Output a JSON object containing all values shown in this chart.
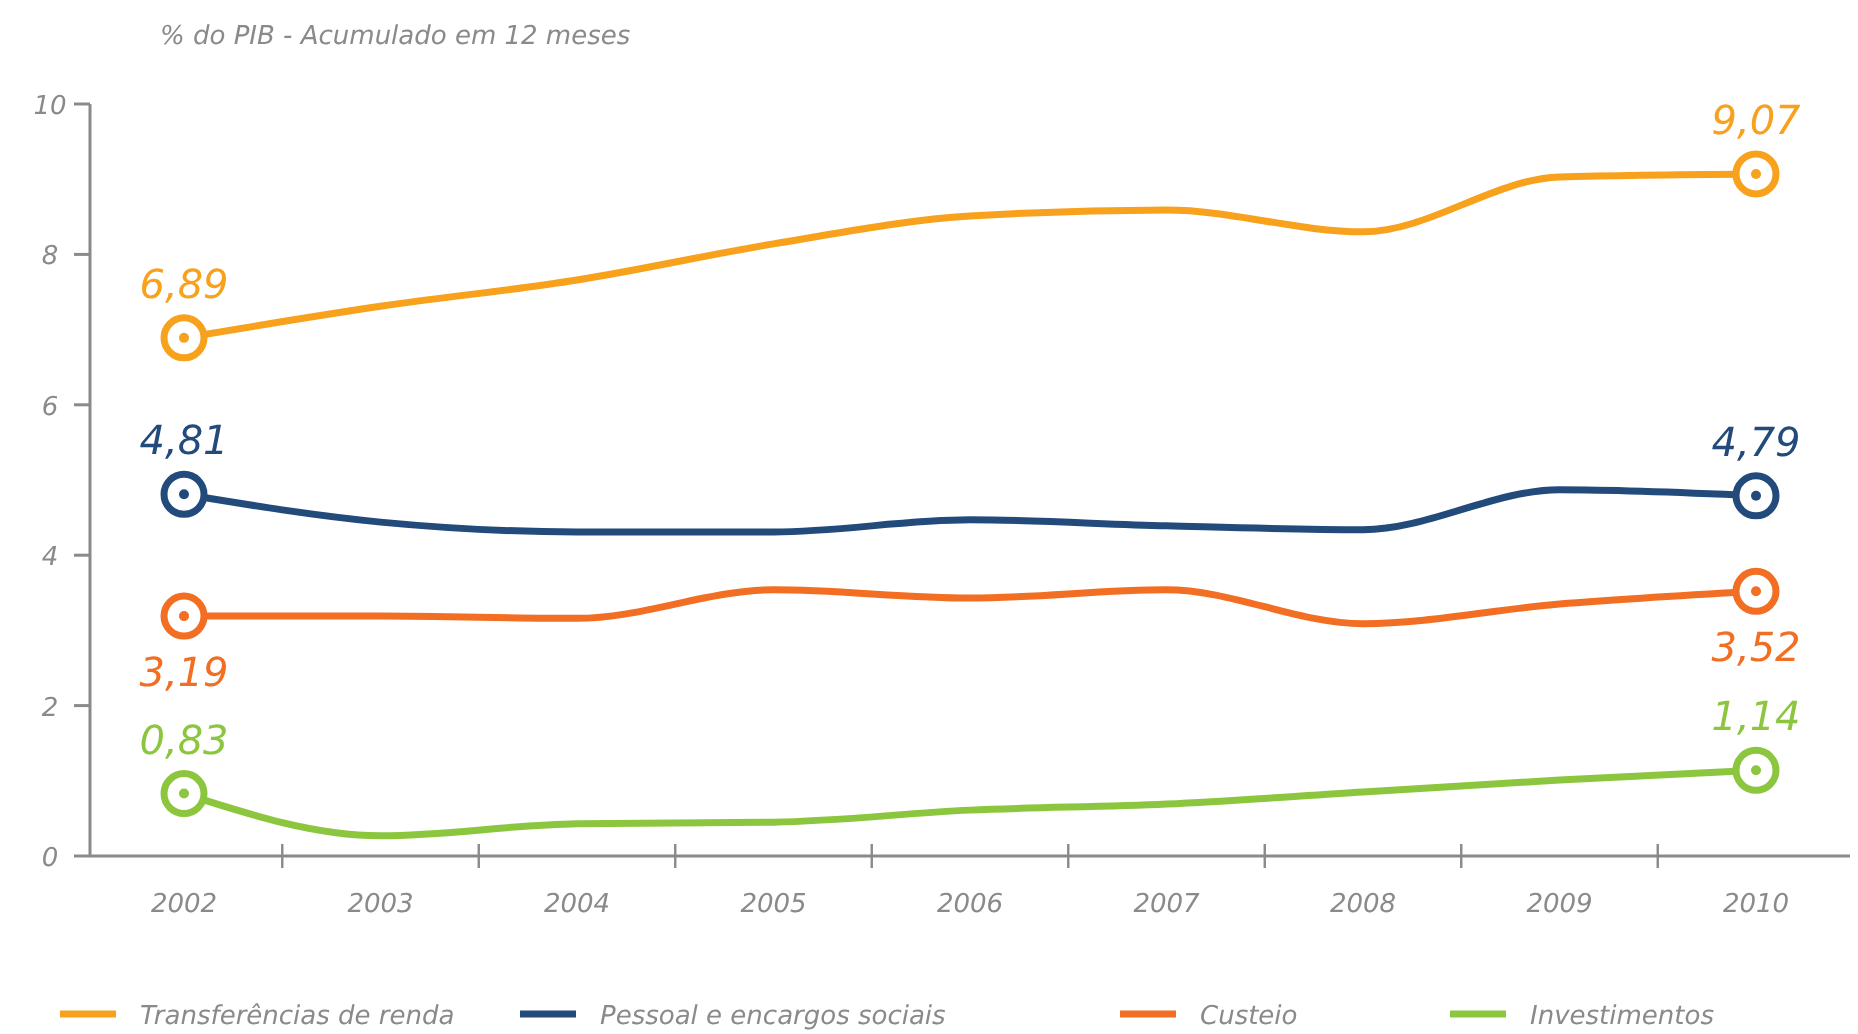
{
  "chart_data": {
    "type": "line",
    "title": "% do PIB - Acumulado em 12 meses",
    "categories": [
      "2002",
      "2003",
      "2004",
      "2005",
      "2006",
      "2007",
      "2008",
      "2009",
      "2010"
    ],
    "ylim": [
      0,
      10
    ],
    "yticks": [
      0,
      2,
      4,
      6,
      8,
      10
    ],
    "grid": false,
    "legend": "bottom",
    "line_style": "solid",
    "series": [
      {
        "name": "Transferências de renda",
        "color": "#f7a11c",
        "values": [
          6.89,
          7.31,
          7.66,
          8.14,
          8.51,
          8.59,
          8.3,
          9.03,
          9.07
        ],
        "value_labels": [
          "6,89",
          null,
          null,
          null,
          null,
          null,
          null,
          null,
          "9,07"
        ]
      },
      {
        "name": "Pessoal e encargos sociais",
        "color": "#224b7c",
        "values": [
          4.81,
          4.44,
          4.31,
          4.31,
          4.47,
          4.39,
          4.34,
          4.87,
          4.79
        ],
        "value_labels": [
          "4,81",
          null,
          null,
          null,
          null,
          null,
          null,
          null,
          "4,79"
        ]
      },
      {
        "name": "Custeio",
        "color": "#f26e22",
        "values": [
          3.19,
          3.19,
          3.16,
          3.54,
          3.43,
          3.54,
          3.09,
          3.35,
          3.52
        ],
        "value_labels": [
          "3,19",
          null,
          null,
          null,
          null,
          null,
          null,
          null,
          "3,52"
        ]
      },
      {
        "name": "Investimentos",
        "color": "#8cc63f",
        "values": [
          0.83,
          0.27,
          0.43,
          0.45,
          0.61,
          0.69,
          0.85,
          1.01,
          1.14
        ],
        "value_labels": [
          "0,83",
          null,
          null,
          null,
          null,
          null,
          null,
          null,
          "1,14"
        ]
      }
    ]
  }
}
